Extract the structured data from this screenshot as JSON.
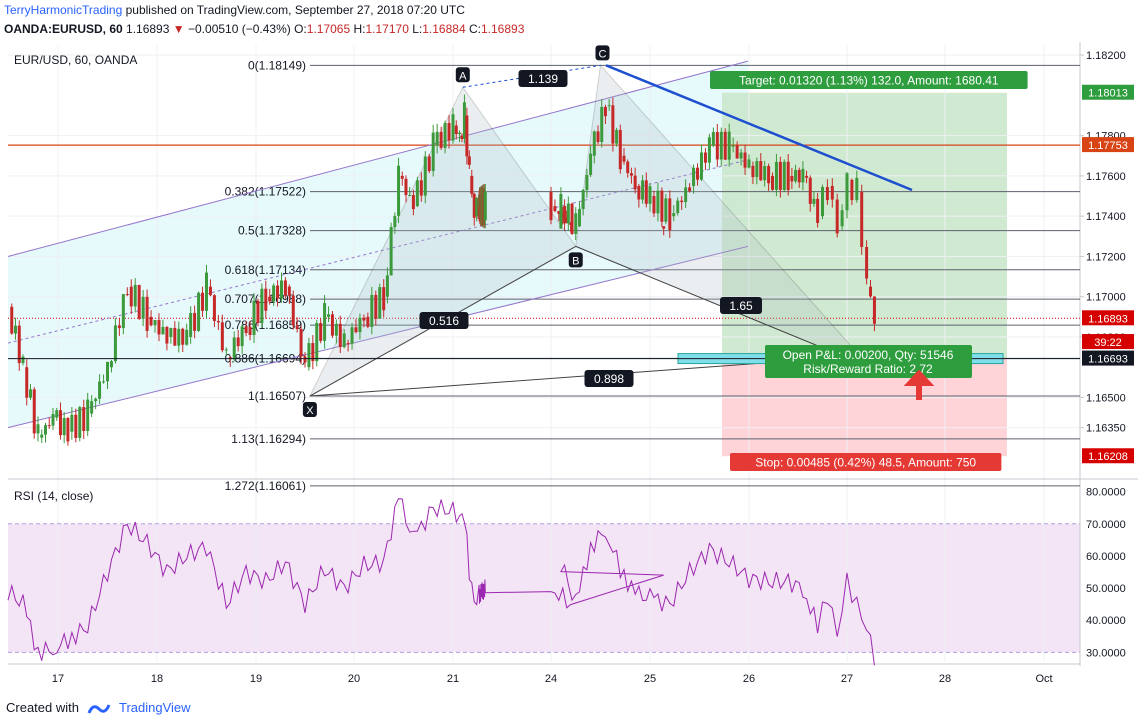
{
  "header": {
    "publisher": "TerryHarmonicTrading",
    "published_text": "published on TradingView.com, September 27, 2018 07:20 UTC",
    "symbol_line": "OANDA:EURUSD, 60",
    "last": "1.16893",
    "change": "−0.00510 (−0.43%)",
    "o_label": "O:",
    "o": "1.17065",
    "h_label": "H:",
    "h": "1.17170",
    "l_label": "L:",
    "l": "1.16884",
    "c_label": "C:",
    "c": "1.16893"
  },
  "footer": {
    "created_with": "Created with",
    "brand": "TradingView"
  },
  "colors": {
    "up": "#3c9a3c",
    "down": "#c62828",
    "rsi": "#9c27b0",
    "target_bg": "#c8e6c9",
    "stop_bg": "#ffcdd2",
    "channel_bg": "#e0f7fa",
    "trend": "#1e4fcf",
    "resistance": "#d84315",
    "price_tag": "#d50000"
  },
  "chart_data": [
    {
      "type": "candlestick",
      "title": "EUR/USD, 60, OANDA",
      "ylim": [
        1.161,
        1.1825
      ],
      "y_ticks": [
        "1.18200",
        "1.17800",
        "1.17600",
        "1.17400",
        "1.17200",
        "1.17000",
        "1.16800",
        "1.16500",
        "1.16350"
      ],
      "x_ticks": [
        "17",
        "18",
        "19",
        "20",
        "21",
        "24",
        "25",
        "26",
        "27",
        "28",
        "Oct"
      ],
      "fib_levels": [
        {
          "label": "0(1.18149)",
          "value": 1.18149
        },
        {
          "label": "0.382(1.17522)",
          "value": 1.17522
        },
        {
          "label": "0.5(1.17328)",
          "value": 1.17328
        },
        {
          "label": "0.618(1.17134)",
          "value": 1.17134
        },
        {
          "label": "0.707(1.16988)",
          "value": 1.16988
        },
        {
          "label": "0.786(1.16859)",
          "value": 1.16859
        },
        {
          "label": "0.886(1.16694)",
          "value": 1.16694
        },
        {
          "label": "1(1.16507)",
          "value": 1.16507
        },
        {
          "label": "1.13(1.16294)",
          "value": 1.16294
        },
        {
          "label": "1.272(1.16061)",
          "value": 1.16061
        }
      ],
      "pattern_points": [
        {
          "label": "X",
          "x": 19.55,
          "y": 1.16507
        },
        {
          "label": "A",
          "x": 21.3,
          "y": 1.1804
        },
        {
          "label": "B",
          "x": 24.25,
          "y": 1.1725
        },
        {
          "label": "C",
          "x": 24.5,
          "y": 1.18149
        }
      ],
      "pattern_ratios": [
        "1.139",
        "0.516",
        "0.898",
        "1.65"
      ],
      "position": {
        "target_label": "Target: 0.01320 (1.13%) 132.0, Amount: 1680.41",
        "stop_label": "Stop: 0.00485 (0.42%) 48.5, Amount: 750",
        "pnl_label": "Open P&L: 0.00200, Qty: 51546",
        "rr_label": "Risk/Reward Ratio: 2.72",
        "entry": 1.16693,
        "target": 1.18013,
        "stop": 1.16208
      },
      "price_tags": [
        {
          "label": "1.18013",
          "value": 1.18013,
          "kind": "target"
        },
        {
          "label": "1.17753",
          "value": 1.17753,
          "kind": "resistance"
        },
        {
          "label": "1.16893",
          "value": 1.16893,
          "kind": "last"
        },
        {
          "label": "39:22",
          "value": 1.16775,
          "kind": "timer"
        },
        {
          "label": "1.16693",
          "value": 1.16693,
          "kind": "entry"
        },
        {
          "label": "1.16208",
          "value": 1.16208,
          "kind": "stop"
        }
      ],
      "resistance": 1.17753,
      "last_price": 1.16893,
      "series": [
        {
          "name": "EUR/USD",
          "points": [
            [
              16.5,
              1.1695
            ],
            [
              16.65,
              1.1665
            ],
            [
              16.8,
              1.163
            ],
            [
              16.95,
              1.164
            ],
            [
              17.1,
              1.1633
            ],
            [
              17.3,
              1.1642
            ],
            [
              17.5,
              1.1665
            ],
            [
              17.7,
              1.1705
            ],
            [
              17.9,
              1.169
            ],
            [
              18.1,
              1.168
            ],
            [
              18.3,
              1.168
            ],
            [
              18.5,
              1.1705
            ],
            [
              18.7,
              1.167
            ],
            [
              18.9,
              1.1685
            ],
            [
              19.1,
              1.17
            ],
            [
              19.3,
              1.1705
            ],
            [
              19.5,
              1.1665
            ],
            [
              19.7,
              1.169
            ],
            [
              19.9,
              1.1677
            ],
            [
              20.1,
              1.169
            ],
            [
              20.3,
              1.17
            ],
            [
              20.45,
              1.176
            ],
            [
              20.6,
              1.1745
            ],
            [
              20.8,
              1.1775
            ],
            [
              21.0,
              1.1785
            ],
            [
              21.2,
              1.178
            ],
            [
              21.35,
              1.179
            ],
            [
              21.5,
              1.176
            ],
            [
              21.65,
              1.174
            ],
            [
              21.8,
              1.1745
            ],
            [
              22.0,
              1.1745
            ],
            [
              22.2,
              1.1735
            ],
            [
              24.1,
              1.1745
            ],
            [
              24.25,
              1.1735
            ],
            [
              24.4,
              1.177
            ],
            [
              24.55,
              1.1795
            ],
            [
              24.7,
              1.177
            ],
            [
              24.85,
              1.1755
            ],
            [
              25.0,
              1.175
            ],
            [
              25.2,
              1.174
            ],
            [
              25.4,
              1.1755
            ],
            [
              25.6,
              1.1775
            ],
            [
              25.8,
              1.1775
            ],
            [
              26.0,
              1.1765
            ],
            [
              26.2,
              1.176
            ],
            [
              26.4,
              1.176
            ],
            [
              26.55,
              1.176
            ],
            [
              26.7,
              1.174
            ],
            [
              26.8,
              1.1755
            ],
            [
              26.9,
              1.1735
            ],
            [
              27.0,
              1.1758
            ],
            [
              27.1,
              1.1752
            ],
            [
              27.2,
              1.1705
            ],
            [
              27.28,
              1.16893
            ]
          ]
        }
      ]
    },
    {
      "type": "line",
      "title": "RSI (14, close)",
      "ylim": [
        27,
        83
      ],
      "y_ticks": [
        "80.0000",
        "70.0000",
        "60.0000",
        "50.0000",
        "40.0000",
        "30.0000"
      ],
      "bands": [
        30,
        70
      ],
      "series": [
        {
          "name": "RSI",
          "points": [
            [
              16.5,
              49
            ],
            [
              16.65,
              45
            ],
            [
              16.8,
              30
            ],
            [
              16.95,
              31
            ],
            [
              17.1,
              34
            ],
            [
              17.3,
              38
            ],
            [
              17.5,
              55
            ],
            [
              17.7,
              70
            ],
            [
              17.9,
              64
            ],
            [
              18.1,
              55
            ],
            [
              18.3,
              60
            ],
            [
              18.5,
              63
            ],
            [
              18.7,
              45
            ],
            [
              18.9,
              55
            ],
            [
              19.1,
              52
            ],
            [
              19.3,
              58
            ],
            [
              19.5,
              45
            ],
            [
              19.7,
              56
            ],
            [
              19.9,
              50
            ],
            [
              20.1,
              57
            ],
            [
              20.3,
              58
            ],
            [
              20.45,
              78
            ],
            [
              20.6,
              65
            ],
            [
              20.8,
              75
            ],
            [
              21.0,
              74
            ],
            [
              21.2,
              72
            ],
            [
              21.35,
              73
            ],
            [
              21.5,
              55
            ],
            [
              21.65,
              45
            ],
            [
              21.8,
              48
            ],
            [
              22.0,
              50
            ],
            [
              22.2,
              45
            ],
            [
              24.1,
              58
            ],
            [
              24.25,
              45
            ],
            [
              24.4,
              63
            ],
            [
              24.55,
              68
            ],
            [
              24.7,
              56
            ],
            [
              24.85,
              48
            ],
            [
              25.0,
              47
            ],
            [
              25.2,
              45
            ],
            [
              25.4,
              55
            ],
            [
              25.6,
              62
            ],
            [
              25.8,
              58
            ],
            [
              26.0,
              53
            ],
            [
              26.2,
              52
            ],
            [
              26.4,
              52
            ],
            [
              26.55,
              50
            ],
            [
              26.7,
              38
            ],
            [
              26.8,
              48
            ],
            [
              26.9,
              35
            ],
            [
              27.0,
              52
            ],
            [
              27.1,
              45
            ],
            [
              27.2,
              38
            ],
            [
              27.28,
              29
            ]
          ]
        }
      ]
    }
  ]
}
